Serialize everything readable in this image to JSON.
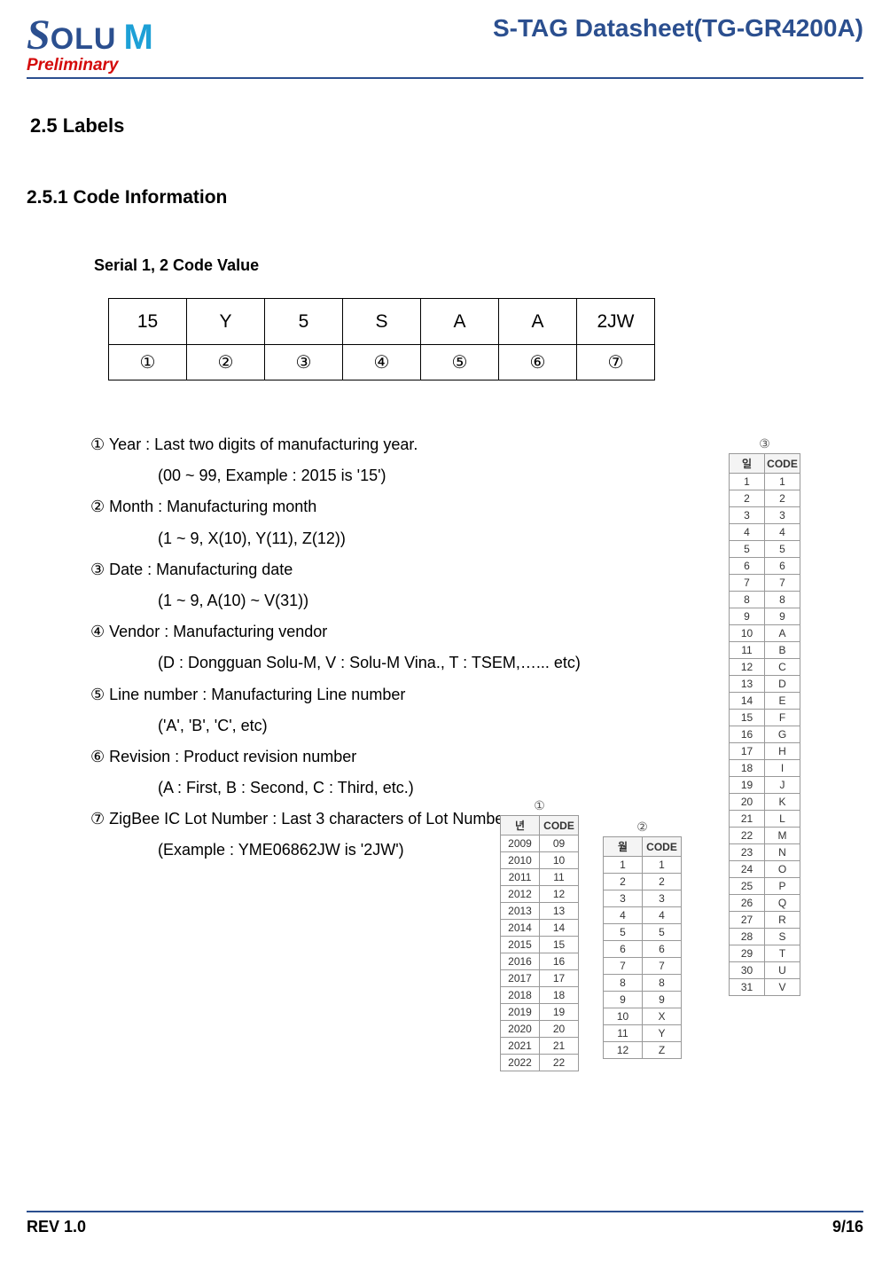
{
  "header": {
    "logo_s": "S",
    "logo_olu": "OLU",
    "logo_m": "M",
    "preliminary": "Preliminary",
    "title": "S-TAG Datasheet(TG-GR4200A)"
  },
  "section": "2.5 Labels",
  "subsection": "2.5.1 Code Information",
  "subheading": "Serial 1, 2 Code Value",
  "codetable": {
    "row1": [
      "15",
      "Y",
      "5",
      "S",
      "A",
      "A",
      "2JW"
    ],
    "row2": [
      "①",
      "②",
      "③",
      "④",
      "⑤",
      "⑥",
      "⑦"
    ]
  },
  "defs": [
    {
      "main": "① Year : Last two digits of manufacturing year.",
      "sub": "(00 ~ 99, Example : 2015 is '15')"
    },
    {
      "main": "② Month : Manufacturing month",
      "sub": "(1 ~ 9, X(10), Y(11), Z(12))"
    },
    {
      "main": "③ Date : Manufacturing date",
      "sub": "(1 ~ 9, A(10) ~ V(31))"
    },
    {
      "main": "④ Vendor : Manufacturing vendor",
      "sub": "(D : Dongguan Solu-M, V : Solu-M Vina., T : TSEM,…... etc)"
    },
    {
      "main": "⑤ Line number : Manufacturing Line number",
      "sub": "('A', 'B', 'C', etc)"
    },
    {
      "main": "⑥ Revision : Product revision number",
      "sub": "(A : First, B : Second, C : Third, etc.)"
    },
    {
      "main": "⑦ ZigBee IC Lot Number : Last 3 characters of Lot Number",
      "sub": "(Example : YME06862JW is '2JW')"
    }
  ],
  "yeartable": {
    "circ": "①",
    "headers": [
      "년",
      "CODE"
    ],
    "rows": [
      [
        "2009",
        "09"
      ],
      [
        "2010",
        "10"
      ],
      [
        "2011",
        "11"
      ],
      [
        "2012",
        "12"
      ],
      [
        "2013",
        "13"
      ],
      [
        "2014",
        "14"
      ],
      [
        "2015",
        "15"
      ],
      [
        "2016",
        "16"
      ],
      [
        "2017",
        "17"
      ],
      [
        "2018",
        "18"
      ],
      [
        "2019",
        "19"
      ],
      [
        "2020",
        "20"
      ],
      [
        "2021",
        "21"
      ],
      [
        "2022",
        "22"
      ]
    ]
  },
  "monthtable": {
    "circ": "②",
    "headers": [
      "월",
      "CODE"
    ],
    "rows": [
      [
        "1",
        "1"
      ],
      [
        "2",
        "2"
      ],
      [
        "3",
        "3"
      ],
      [
        "4",
        "4"
      ],
      [
        "5",
        "5"
      ],
      [
        "6",
        "6"
      ],
      [
        "7",
        "7"
      ],
      [
        "8",
        "8"
      ],
      [
        "9",
        "9"
      ],
      [
        "10",
        "X"
      ],
      [
        "11",
        "Y"
      ],
      [
        "12",
        "Z"
      ]
    ]
  },
  "daytable": {
    "circ": "③",
    "headers": [
      "일",
      "CODE"
    ],
    "rows": [
      [
        "1",
        "1"
      ],
      [
        "2",
        "2"
      ],
      [
        "3",
        "3"
      ],
      [
        "4",
        "4"
      ],
      [
        "5",
        "5"
      ],
      [
        "6",
        "6"
      ],
      [
        "7",
        "7"
      ],
      [
        "8",
        "8"
      ],
      [
        "9",
        "9"
      ],
      [
        "10",
        "A"
      ],
      [
        "11",
        "B"
      ],
      [
        "12",
        "C"
      ],
      [
        "13",
        "D"
      ],
      [
        "14",
        "E"
      ],
      [
        "15",
        "F"
      ],
      [
        "16",
        "G"
      ],
      [
        "17",
        "H"
      ],
      [
        "18",
        "I"
      ],
      [
        "19",
        "J"
      ],
      [
        "20",
        "K"
      ],
      [
        "21",
        "L"
      ],
      [
        "22",
        "M"
      ],
      [
        "23",
        "N"
      ],
      [
        "24",
        "O"
      ],
      [
        "25",
        "P"
      ],
      [
        "26",
        "Q"
      ],
      [
        "27",
        "R"
      ],
      [
        "28",
        "S"
      ],
      [
        "29",
        "T"
      ],
      [
        "30",
        "U"
      ],
      [
        "31",
        "V"
      ]
    ]
  },
  "footer": {
    "left": "REV 1.0",
    "right": "9/16"
  }
}
